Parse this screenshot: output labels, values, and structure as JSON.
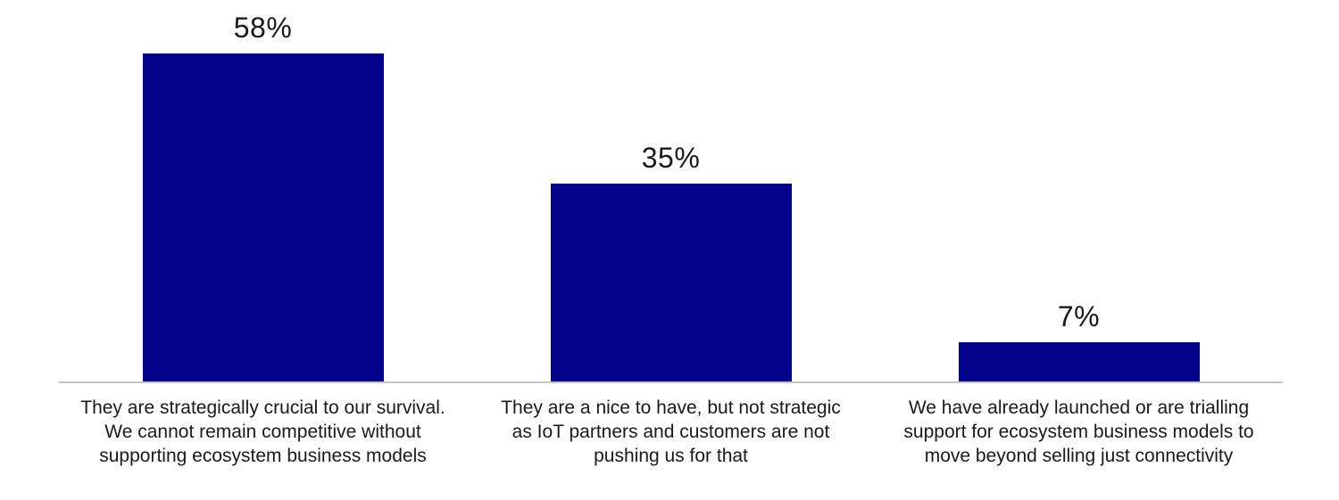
{
  "chart_data": {
    "type": "bar",
    "title": "",
    "xlabel": "",
    "ylabel": "",
    "ylim": [
      0,
      65
    ],
    "grid": false,
    "legend": false,
    "categories": [
      "They are strategically crucial to our survival. We cannot remain competitive without supporting ecosystem business models",
      "They are a nice to have, but not strategic as IoT partners and customers are not pushing us for that",
      "We have already launched or are trialling support for ecosystem business models to move beyond selling just connectivity"
    ],
    "category_label_lines": [
      [
        "They are strategically crucial to our survival.",
        "We cannot remain competitive without",
        "supporting ecosystem business models"
      ],
      [
        "They are a nice to have, but not strategic",
        "as IoT partners and customers are not",
        "pushing us for that"
      ],
      [
        "We have already launched or are trialling",
        "support for ecosystem business models to",
        "move beyond selling just connectivity"
      ]
    ],
    "values": [
      58,
      35,
      7
    ],
    "value_labels": [
      "58%",
      "35%",
      "7%"
    ],
    "colors": {
      "bar": "#02028a",
      "axis_line": "#c6c6c6",
      "text": "#1a1a1a"
    }
  }
}
